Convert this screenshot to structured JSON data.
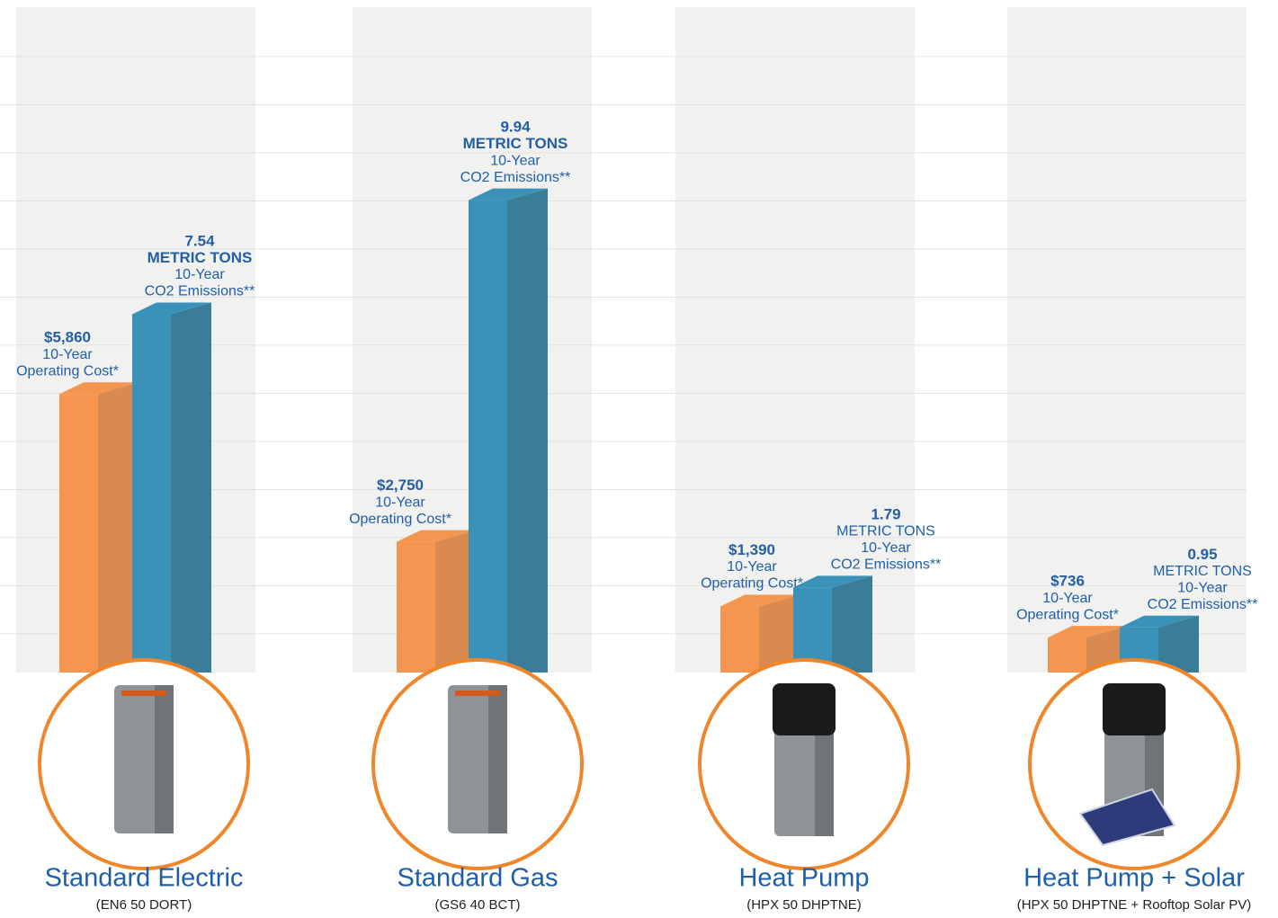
{
  "chart_data": {
    "type": "bar3d",
    "categories": [
      "Standard Electric",
      "Standard Gas",
      "Heat Pump",
      "Heat Pump + Solar"
    ],
    "subcategories": [
      "(EN6 50 DORT)",
      "(GS6 40 BCT)",
      "(HPX 50 DHPTNE)",
      "(HPX 50 DHPTNE + Rooftop Solar PV)"
    ],
    "ylim": [
      0,
      14000
    ],
    "y2lim": [
      0,
      14
    ],
    "grid": true,
    "series": [
      {
        "color": "#f4964f",
        "side_color": "#d98a50",
        "values": [
          5860,
          2750,
          1390,
          736
        ],
        "value_labels": [
          "$5,860",
          "$2,750",
          "$1,390",
          "$736"
        ],
        "label_lines": [
          "10-Year",
          "Operating Cost*"
        ]
      },
      {
        "axis": "y2",
        "color": "#3a92b8",
        "side_color": "#3a7d98",
        "values": [
          7.54,
          9.94,
          1.79,
          0.95
        ],
        "unit": "METRIC TONS",
        "unit_bold": [
          true,
          true,
          false,
          false
        ],
        "label_lines": [
          "10-Year",
          "CO2 Emissions**"
        ]
      }
    ]
  }
}
